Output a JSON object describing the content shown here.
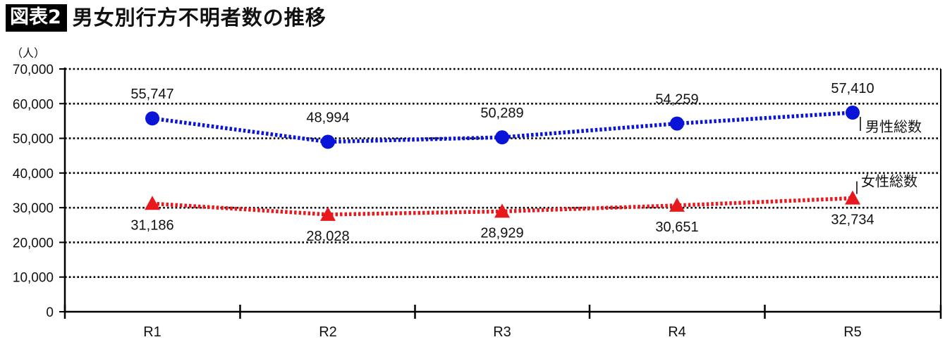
{
  "header": {
    "badge": "図表2",
    "title": "男女別行方不明者数の推移"
  },
  "chart_data": {
    "type": "line",
    "unit_label": "（人）",
    "categories": [
      "R1",
      "R2",
      "R3",
      "R4",
      "R5"
    ],
    "ylim": [
      0,
      70000
    ],
    "yticks": [
      0,
      10000,
      20000,
      30000,
      40000,
      50000,
      60000,
      70000
    ],
    "ytick_labels": [
      "0",
      "10,000",
      "20,000",
      "30,000",
      "40,000",
      "50,000",
      "60,000",
      "70,000"
    ],
    "grid": true,
    "series": [
      {
        "name": "男性総数",
        "values": [
          55747,
          48994,
          50289,
          54259,
          57410
        ],
        "labels": [
          "55,747",
          "48,994",
          "50,289",
          "54,259",
          "57,410"
        ],
        "color": "#0a14d8",
        "marker": "circle"
      },
      {
        "name": "女性総数",
        "values": [
          31186,
          28028,
          28929,
          30651,
          32734
        ],
        "labels": [
          "31,186",
          "28,028",
          "28,929",
          "30,651",
          "32,734"
        ],
        "color": "#e8191c",
        "marker": "triangle"
      }
    ]
  }
}
